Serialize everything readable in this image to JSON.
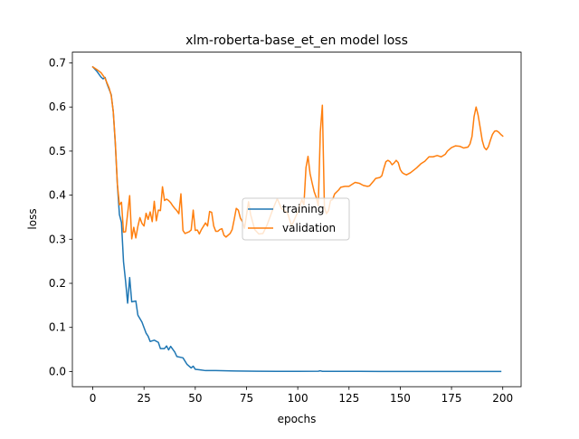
{
  "chart_data": {
    "type": "line",
    "title": "xlm-roberta-base_et_en model loss",
    "xlabel": "epochs",
    "ylabel": "loss",
    "xlim": [
      -9.95,
      208.95
    ],
    "ylim": [
      -0.0345,
      0.7245
    ],
    "xticks": [
      0,
      25,
      50,
      75,
      100,
      125,
      150,
      175,
      200
    ],
    "yticks": [
      0.0,
      0.1,
      0.2,
      0.3,
      0.4,
      0.5,
      0.6,
      0.7
    ],
    "xtick_labels": [
      "0",
      "25",
      "50",
      "75",
      "100",
      "125",
      "150",
      "175",
      "200"
    ],
    "ytick_labels": [
      "0.0",
      "0.1",
      "0.2",
      "0.3",
      "0.4",
      "0.5",
      "0.6",
      "0.7"
    ],
    "grid": false,
    "legend_position": "center-right",
    "series": [
      {
        "name": "training",
        "color": "#1f77b4",
        "points": [
          [
            0,
            0.691
          ],
          [
            2,
            0.681
          ],
          [
            4,
            0.668
          ],
          [
            5,
            0.664
          ],
          [
            6,
            0.667
          ],
          [
            7,
            0.652
          ],
          [
            9,
            0.628
          ],
          [
            10,
            0.589
          ],
          [
            11,
            0.516
          ],
          [
            12,
            0.424
          ],
          [
            13,
            0.356
          ],
          [
            14,
            0.338
          ],
          [
            15,
            0.249
          ],
          [
            16,
            0.205
          ],
          [
            17,
            0.155
          ],
          [
            18,
            0.213
          ],
          [
            19,
            0.158
          ],
          [
            21,
            0.16
          ],
          [
            22,
            0.128
          ],
          [
            24,
            0.112
          ],
          [
            26,
            0.087
          ],
          [
            27,
            0.08
          ],
          [
            28,
            0.068
          ],
          [
            30,
            0.071
          ],
          [
            32,
            0.066
          ],
          [
            33,
            0.052
          ],
          [
            35,
            0.052
          ],
          [
            36,
            0.058
          ],
          [
            37,
            0.049
          ],
          [
            38,
            0.057
          ],
          [
            40,
            0.044
          ],
          [
            41,
            0.034
          ],
          [
            44,
            0.031
          ],
          [
            46,
            0.016
          ],
          [
            48,
            0.008
          ],
          [
            49,
            0.012
          ],
          [
            50,
            0.005
          ],
          [
            52,
            0.004
          ],
          [
            55,
            0.002
          ],
          [
            60,
            0.002
          ],
          [
            70,
            0.001
          ],
          [
            80,
            0.0005
          ],
          [
            90,
            0.0003
          ],
          [
            100,
            0.0003
          ],
          [
            110,
            0.0006
          ],
          [
            111,
            0.0015
          ],
          [
            112,
            0.0003
          ],
          [
            120,
            0.0002
          ],
          [
            130,
            0.0002
          ],
          [
            140,
            0.0001
          ],
          [
            150,
            0.0001
          ],
          [
            160,
            0.0001
          ],
          [
            170,
            0.0001
          ],
          [
            180,
            0.0001
          ],
          [
            190,
            0.0001
          ],
          [
            199,
            0.0001
          ]
        ]
      },
      {
        "name": "validation",
        "color": "#ff7f0e",
        "points": [
          [
            0,
            0.691
          ],
          [
            2,
            0.685
          ],
          [
            4,
            0.678
          ],
          [
            6,
            0.665
          ],
          [
            8,
            0.643
          ],
          [
            9,
            0.626
          ],
          [
            10,
            0.59
          ],
          [
            11,
            0.52
          ],
          [
            12,
            0.425
          ],
          [
            13,
            0.378
          ],
          [
            14,
            0.384
          ],
          [
            15,
            0.316
          ],
          [
            16,
            0.317
          ],
          [
            17,
            0.358
          ],
          [
            18,
            0.399
          ],
          [
            19,
            0.301
          ],
          [
            20,
            0.327
          ],
          [
            21,
            0.303
          ],
          [
            22,
            0.329
          ],
          [
            23,
            0.349
          ],
          [
            24,
            0.336
          ],
          [
            25,
            0.33
          ],
          [
            26,
            0.359
          ],
          [
            27,
            0.345
          ],
          [
            28,
            0.362
          ],
          [
            29,
            0.34
          ],
          [
            30,
            0.386
          ],
          [
            31,
            0.342
          ],
          [
            32,
            0.366
          ],
          [
            33,
            0.365
          ],
          [
            34,
            0.419
          ],
          [
            35,
            0.388
          ],
          [
            36,
            0.391
          ],
          [
            37,
            0.388
          ],
          [
            38,
            0.383
          ],
          [
            39,
            0.376
          ],
          [
            40,
            0.37
          ],
          [
            41,
            0.365
          ],
          [
            42,
            0.358
          ],
          [
            43,
            0.403
          ],
          [
            44,
            0.32
          ],
          [
            45,
            0.313
          ],
          [
            47,
            0.317
          ],
          [
            48,
            0.321
          ],
          [
            49,
            0.366
          ],
          [
            50,
            0.32
          ],
          [
            51,
            0.321
          ],
          [
            52,
            0.312
          ],
          [
            53,
            0.322
          ],
          [
            55,
            0.337
          ],
          [
            56,
            0.33
          ],
          [
            57,
            0.363
          ],
          [
            58,
            0.361
          ],
          [
            59,
            0.33
          ],
          [
            60,
            0.318
          ],
          [
            61,
            0.318
          ],
          [
            62,
            0.322
          ],
          [
            63,
            0.324
          ],
          [
            64,
            0.309
          ],
          [
            65,
            0.305
          ],
          [
            67,
            0.313
          ],
          [
            68,
            0.322
          ],
          [
            69,
            0.345
          ],
          [
            70,
            0.37
          ],
          [
            71,
            0.366
          ],
          [
            72,
            0.348
          ],
          [
            73,
            0.34
          ],
          [
            74,
            0.325
          ],
          [
            76,
            0.385
          ],
          [
            77,
            0.356
          ],
          [
            79,
            0.322
          ],
          [
            81,
            0.312
          ],
          [
            83,
            0.313
          ],
          [
            85,
            0.332
          ],
          [
            88,
            0.37
          ],
          [
            90,
            0.392
          ],
          [
            92,
            0.37
          ],
          [
            95,
            0.36
          ],
          [
            97,
            0.33
          ],
          [
            100,
            0.362
          ],
          [
            102,
            0.39
          ],
          [
            103,
            0.378
          ],
          [
            104,
            0.462
          ],
          [
            105,
            0.488
          ],
          [
            106,
            0.449
          ],
          [
            107,
            0.428
          ],
          [
            108,
            0.408
          ],
          [
            109,
            0.395
          ],
          [
            110,
            0.376
          ],
          [
            111,
            0.543
          ],
          [
            112,
            0.604
          ],
          [
            113,
            0.373
          ],
          [
            114,
            0.358
          ],
          [
            115,
            0.365
          ],
          [
            116,
            0.388
          ],
          [
            117,
            0.39
          ],
          [
            118,
            0.403
          ],
          [
            120,
            0.412
          ],
          [
            121,
            0.418
          ],
          [
            123,
            0.42
          ],
          [
            125,
            0.42
          ],
          [
            126,
            0.423
          ],
          [
            128,
            0.429
          ],
          [
            130,
            0.427
          ],
          [
            132,
            0.422
          ],
          [
            134,
            0.42
          ],
          [
            135,
            0.421
          ],
          [
            137,
            0.432
          ],
          [
            138,
            0.438
          ],
          [
            140,
            0.44
          ],
          [
            141,
            0.444
          ],
          [
            142,
            0.461
          ],
          [
            143,
            0.476
          ],
          [
            144,
            0.479
          ],
          [
            145,
            0.476
          ],
          [
            146,
            0.469
          ],
          [
            147,
            0.473
          ],
          [
            148,
            0.479
          ],
          [
            149,
            0.474
          ],
          [
            150,
            0.458
          ],
          [
            151,
            0.451
          ],
          [
            152,
            0.448
          ],
          [
            153,
            0.446
          ],
          [
            155,
            0.451
          ],
          [
            158,
            0.462
          ],
          [
            160,
            0.471
          ],
          [
            162,
            0.477
          ],
          [
            164,
            0.487
          ],
          [
            166,
            0.487
          ],
          [
            168,
            0.49
          ],
          [
            170,
            0.487
          ],
          [
            172,
            0.493
          ],
          [
            173,
            0.5
          ],
          [
            175,
            0.508
          ],
          [
            177,
            0.512
          ],
          [
            179,
            0.511
          ],
          [
            180,
            0.509
          ],
          [
            181,
            0.507
          ],
          [
            183,
            0.509
          ],
          [
            184,
            0.516
          ],
          [
            185,
            0.533
          ],
          [
            186,
            0.578
          ],
          [
            187,
            0.6
          ],
          [
            188,
            0.581
          ],
          [
            189,
            0.553
          ],
          [
            190,
            0.524
          ],
          [
            191,
            0.508
          ],
          [
            192,
            0.503
          ],
          [
            193,
            0.51
          ],
          [
            194,
            0.525
          ],
          [
            195,
            0.538
          ],
          [
            196,
            0.545
          ],
          [
            197,
            0.546
          ],
          [
            198,
            0.543
          ],
          [
            199,
            0.538
          ],
          [
            200,
            0.534
          ]
        ]
      }
    ]
  }
}
